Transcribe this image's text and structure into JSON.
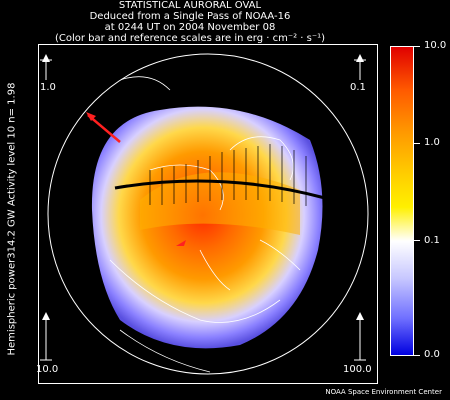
{
  "title": {
    "line1": "STATISTICAL AURORAL OVAL",
    "line2": "Deduced from a Single Pass of NOAA-16",
    "line3": "at 0244 UT on 2004 November 08",
    "line4": "(Color bar and reference scales are in erg · cm⁻² · s⁻¹)"
  },
  "side_label": "Hemispheric power314.2 GW   Activity level 10   n= 1.98",
  "colorbar": {
    "labels": [
      "10.0",
      "1.0",
      "0.1",
      "0.0"
    ],
    "colors": [
      "#e00000",
      "#ff9a00",
      "#ffffff",
      "#0000e0"
    ]
  },
  "reference_scales": {
    "top_left": "1.0",
    "top_right": "0.1",
    "bottom_left": "10.0",
    "bottom_right": "100.0"
  },
  "credit": "NOAA Space Environment Center"
}
